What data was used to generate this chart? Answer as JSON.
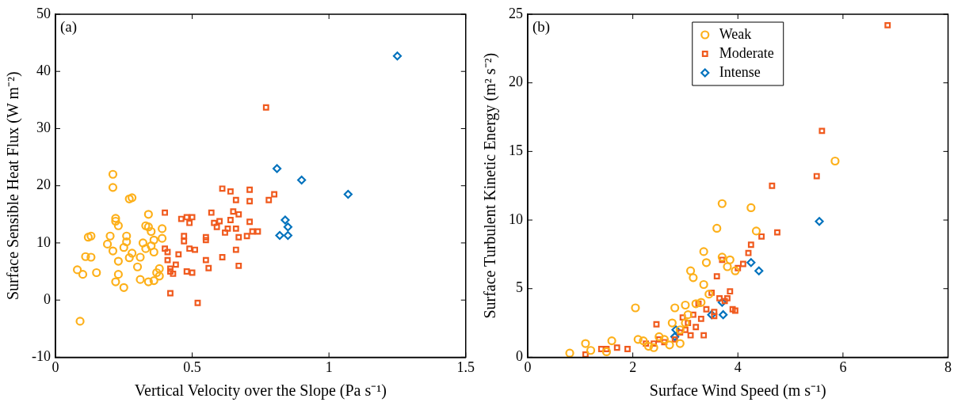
{
  "chart_data": [
    {
      "type": "scatter",
      "xlabel": "Vertical Velocity over the Slope (Pa s⁻¹)",
      "ylabel": "Surface Sensible Heat Flux (W m⁻²)",
      "annotations": [
        "(a)"
      ],
      "xlim": [
        0,
        1.5
      ],
      "xticks": [
        0,
        0.5,
        1,
        1.5
      ],
      "ylim": [
        -10,
        50
      ],
      "yticks": [
        -10,
        0,
        10,
        20,
        30,
        40,
        50
      ],
      "grid": false,
      "legend": false,
      "series": [
        {
          "color": "#fdb01a",
          "marker": "circle",
          "x": [
            0.09,
            0.08,
            0.1,
            0.11,
            0.13,
            0.12,
            0.13,
            0.15,
            0.19,
            0.2,
            0.21,
            0.21,
            0.22,
            0.22,
            0.23,
            0.21,
            0.22,
            0.23,
            0.23,
            0.25,
            0.25,
            0.26,
            0.26,
            0.27,
            0.28,
            0.27,
            0.28,
            0.3,
            0.32,
            0.33,
            0.31,
            0.33,
            0.34,
            0.34,
            0.35,
            0.35,
            0.36,
            0.37,
            0.38,
            0.38,
            0.34,
            0.36,
            0.39,
            0.39,
            0.31,
            0.36
          ],
          "values": [
            -3.7,
            5.3,
            4.5,
            7.6,
            7.5,
            11,
            11.2,
            4.8,
            9.8,
            11.2,
            22,
            19.7,
            13.8,
            14.3,
            13,
            8.6,
            3.2,
            4.5,
            6.8,
            2.2,
            9.2,
            10.2,
            11.2,
            17.7,
            17.9,
            7.4,
            8.2,
            5.8,
            10,
            9,
            3.6,
            13,
            12.8,
            15,
            12,
            9.5,
            10.5,
            4.8,
            5.5,
            4.2,
            3.2,
            3.4,
            12.5,
            10.8,
            7.5,
            8.4
          ]
        },
        {
          "color": "#f05a1e",
          "marker": "square",
          "x": [
            0.4,
            0.4,
            0.41,
            0.41,
            0.42,
            0.42,
            0.43,
            0.42,
            0.44,
            0.45,
            0.46,
            0.47,
            0.47,
            0.48,
            0.49,
            0.5,
            0.48,
            0.5,
            0.49,
            0.51,
            0.52,
            0.55,
            0.55,
            0.55,
            0.56,
            0.57,
            0.58,
            0.59,
            0.6,
            0.61,
            0.61,
            0.62,
            0.63,
            0.64,
            0.64,
            0.65,
            0.66,
            0.66,
            0.67,
            0.67,
            0.66,
            0.67,
            0.7,
            0.71,
            0.71,
            0.72,
            0.71,
            0.74,
            0.77,
            0.78,
            0.8
          ],
          "values": [
            15.3,
            9,
            8.4,
            7,
            5.5,
            5,
            4.6,
            1.2,
            6.2,
            8,
            14.2,
            11.2,
            10.3,
            14.5,
            13.5,
            14.5,
            5,
            4.8,
            9,
            8.8,
            -0.5,
            11,
            10.5,
            7,
            5.6,
            15.3,
            13.5,
            12.8,
            13.8,
            19.5,
            7.5,
            11.8,
            12.5,
            19,
            14,
            15.5,
            17.5,
            12.5,
            15,
            11,
            8.8,
            6,
            11.2,
            19.3,
            17.3,
            12,
            13.7,
            12,
            33.7,
            17.5,
            18.5
          ]
        },
        {
          "color": "#0072bd",
          "marker": "diamond",
          "x": [
            0.81,
            0.82,
            0.84,
            0.85,
            0.85,
            0.9,
            1.07,
            1.25
          ],
          "values": [
            23,
            11.3,
            14,
            12.8,
            11.3,
            21,
            18.5,
            42.7
          ]
        }
      ]
    },
    {
      "type": "scatter",
      "xlabel": "Surface Wind Speed (m s⁻¹)",
      "ylabel": "Surface Turbulent Kinetic Energy (m² s⁻²)",
      "annotations": [
        "(b)"
      ],
      "xlim": [
        0,
        8
      ],
      "xticks": [
        0,
        2,
        4,
        6,
        8
      ],
      "ylim": [
        0,
        25
      ],
      "yticks": [
        0,
        5,
        10,
        15,
        20,
        25
      ],
      "grid": false,
      "legend": "top",
      "series": [
        {
          "name": "Weak",
          "color": "#fdb01a",
          "marker": "circle",
          "x": [
            0.8,
            1.1,
            1.2,
            1.5,
            1.6,
            2.05,
            2.1,
            2.3,
            2.4,
            2.5,
            2.6,
            2.7,
            2.8,
            2.75,
            2.9,
            3.0,
            3.05,
            3.1,
            3.15,
            3.2,
            3.3,
            3.35,
            3.4,
            3.35,
            3.45,
            3.6,
            3.7,
            3.7,
            3.8,
            3.85,
            3.95,
            4.25,
            4.35,
            5.85,
            2.2,
            3.0,
            2.9
          ],
          "values": [
            0.3,
            1,
            0.5,
            0.4,
            1.2,
            3.6,
            1.3,
            0.8,
            0.7,
            1.5,
            1.3,
            0.9,
            3.6,
            2.5,
            2.0,
            3.8,
            3.1,
            6.3,
            5.8,
            3.9,
            4.0,
            7.7,
            6.9,
            5.3,
            4.6,
            9.4,
            11.2,
            7.3,
            6.6,
            7.1,
            6.3,
            10.9,
            9.2,
            14.3,
            1.2,
            2.5,
            1.0
          ]
        },
        {
          "name": "Moderate",
          "color": "#f05a1e",
          "marker": "square",
          "x": [
            1.1,
            1.4,
            1.5,
            1.7,
            1.9,
            2.25,
            2.4,
            2.45,
            2.5,
            2.6,
            2.8,
            2.9,
            2.95,
            3.0,
            3.05,
            3.1,
            3.15,
            3.2,
            3.25,
            3.3,
            3.35,
            3.4,
            3.5,
            3.55,
            3.6,
            3.65,
            3.7,
            3.75,
            3.8,
            3.85,
            3.9,
            4.0,
            4.1,
            4.2,
            4.25,
            4.45,
            4.65,
            4.75,
            5.5,
            5.6,
            6.85,
            3.95,
            3.55
          ],
          "values": [
            0.2,
            0.6,
            0.6,
            0.7,
            0.6,
            1.0,
            1.0,
            2.4,
            1.3,
            1.1,
            1.3,
            1.8,
            2.9,
            2.0,
            2.5,
            1.6,
            3.1,
            2.2,
            3.9,
            2.8,
            1.6,
            3.5,
            4.7,
            3.0,
            5.9,
            4.3,
            7.1,
            4.1,
            4.3,
            4.8,
            3.5,
            6.5,
            6.8,
            7.6,
            8.2,
            8.8,
            12.5,
            9.1,
            13.2,
            16.5,
            24.2,
            3.4,
            3.3
          ]
        },
        {
          "name": "Intense",
          "color": "#0072bd",
          "marker": "diamond",
          "x": [
            2.8,
            2.82,
            3.5,
            3.7,
            3.72,
            4.25,
            4.4,
            5.55
          ],
          "values": [
            1.5,
            2.0,
            3.1,
            4.0,
            3.1,
            6.9,
            6.3,
            9.9
          ]
        }
      ]
    }
  ]
}
